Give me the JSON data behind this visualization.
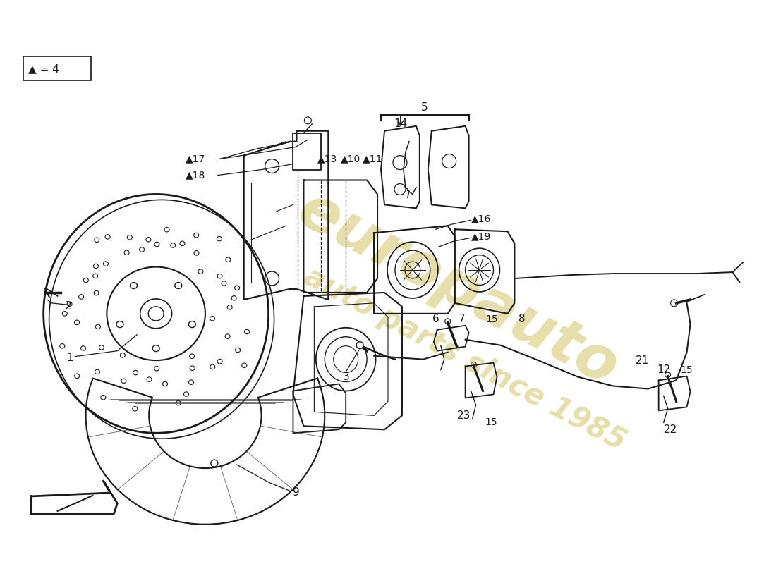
{
  "bg_color": "#ffffff",
  "lc": "#1a1a1a",
  "wm_color": "#c8b840",
  "wm_alpha": 0.45,
  "fig_w": 11.0,
  "fig_h": 8.0,
  "dpi": 100
}
